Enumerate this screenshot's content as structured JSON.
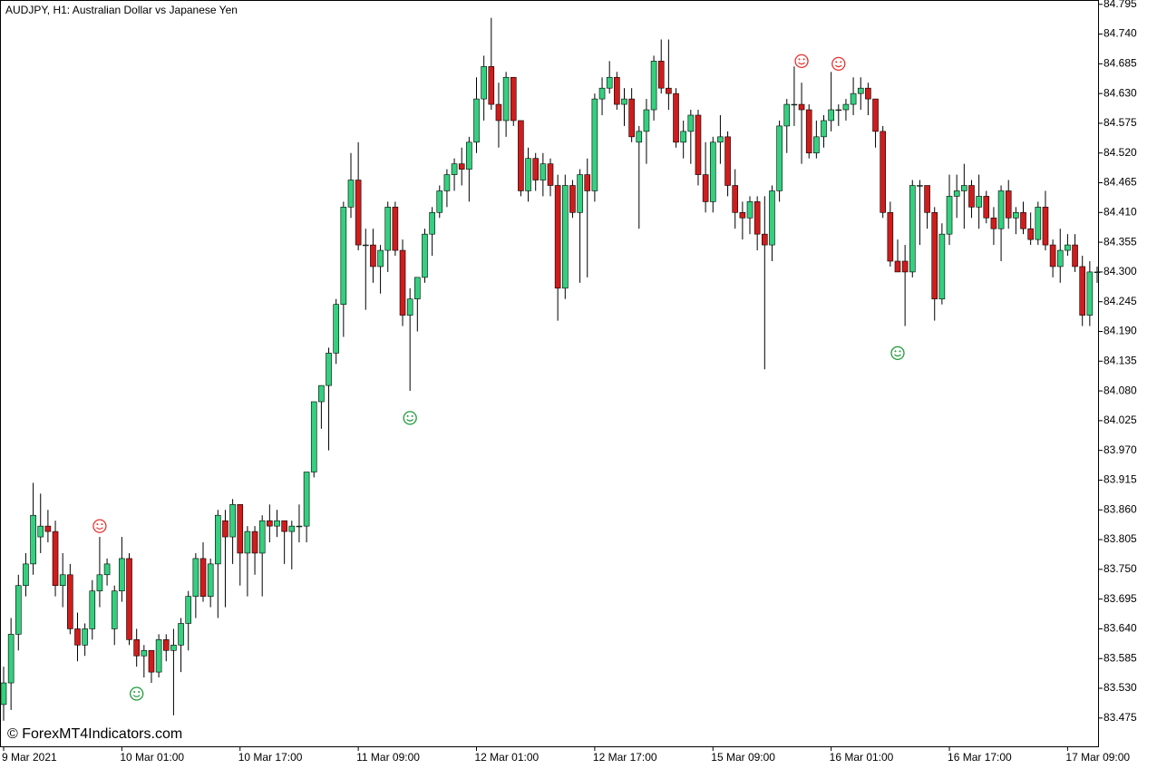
{
  "chart_data": {
    "type": "candlestick",
    "title": "AUDJPY, H1:  Australian Dollar vs Japanese Yen",
    "watermark": "© ForexMT4Indicators.com",
    "up_color": "#34d07f",
    "down_color": "#d01c1c",
    "wick_color": "#000000",
    "ylim": [
      83.421,
      84.803
    ],
    "yticks": [
      83.475,
      {
        "value": 83.53,
        "label": "83.530"
      },
      83.585,
      {
        "value": 83.64,
        "label": "83.640"
      },
      83.695,
      {
        "value": 83.75,
        "label": "83.750"
      },
      83.805,
      {
        "value": 83.86,
        "label": "83.860"
      },
      83.915,
      {
        "value": 83.97,
        "label": "83.970"
      },
      84.025,
      {
        "value": 84.08,
        "label": "84.080"
      },
      84.135,
      {
        "value": 84.19,
        "label": "84.190"
      },
      84.245,
      {
        "value": 84.3,
        "label": "84.300"
      },
      84.355,
      {
        "value": 84.41,
        "label": "84.410"
      },
      84.465,
      {
        "value": 84.52,
        "label": "84.520"
      },
      84.575,
      {
        "value": 84.63,
        "label": "84.630"
      },
      84.685,
      {
        "value": 84.74,
        "label": "84.740"
      },
      84.795
    ],
    "categories": [
      "9 Mar 2021",
      null,
      null,
      null,
      null,
      null,
      null,
      null,
      null,
      null,
      null,
      null,
      null,
      null,
      null,
      null,
      "10 Mar 01:00",
      null,
      null,
      null,
      null,
      null,
      null,
      null,
      null,
      null,
      null,
      null,
      null,
      null,
      null,
      null,
      "10 Mar 17:00",
      null,
      null,
      null,
      null,
      null,
      null,
      null,
      null,
      null,
      null,
      null,
      null,
      null,
      null,
      null,
      "11 Mar 09:00",
      null,
      null,
      null,
      null,
      null,
      null,
      null,
      null,
      null,
      null,
      null,
      null,
      null,
      null,
      null,
      "12 Mar 01:00",
      null,
      null,
      null,
      null,
      null,
      null,
      null,
      null,
      null,
      null,
      null,
      null,
      null,
      null,
      null,
      "12 Mar 17:00",
      null,
      null,
      null,
      null,
      null,
      null,
      null,
      null,
      null,
      null,
      null,
      null,
      null,
      null,
      null,
      "15 Mar 09:00",
      null,
      null,
      null,
      null,
      null,
      null,
      null,
      null,
      null,
      null,
      null,
      null,
      null,
      null,
      null,
      "16 Mar 01:00",
      null,
      null,
      null,
      null,
      null,
      null,
      null,
      null,
      null,
      null,
      null,
      null,
      null,
      null,
      null,
      "16 Mar 17:00",
      null,
      null,
      null,
      null,
      null,
      null,
      null,
      null,
      null,
      null,
      null,
      null,
      null,
      null,
      null,
      "17 Mar 09:00",
      null,
      null,
      null,
      null
    ],
    "ohlc": [
      [
        83.5,
        83.57,
        83.47,
        83.54
      ],
      [
        83.54,
        83.66,
        83.49,
        83.63
      ],
      [
        83.63,
        83.74,
        83.6,
        83.72
      ],
      [
        83.72,
        83.78,
        83.7,
        83.76
      ],
      [
        83.76,
        83.91,
        83.74,
        83.85
      ],
      [
        83.81,
        83.89,
        83.78,
        83.83
      ],
      [
        83.83,
        83.86,
        83.8,
        83.82
      ],
      [
        83.82,
        83.84,
        83.7,
        83.72
      ],
      [
        83.72,
        83.78,
        83.68,
        83.74
      ],
      [
        83.74,
        83.76,
        83.63,
        83.64
      ],
      [
        83.64,
        83.67,
        83.58,
        83.61
      ],
      [
        83.61,
        83.65,
        83.59,
        83.64
      ],
      [
        83.64,
        83.73,
        83.62,
        83.71
      ],
      [
        83.71,
        83.81,
        83.68,
        83.74
      ],
      [
        83.74,
        83.77,
        83.72,
        83.76
      ],
      [
        83.64,
        83.72,
        83.61,
        83.71
      ],
      [
        83.71,
        83.81,
        83.69,
        83.77
      ],
      [
        83.77,
        83.78,
        83.61,
        83.62
      ],
      [
        83.62,
        83.64,
        83.57,
        83.59
      ],
      [
        83.59,
        83.61,
        83.55,
        83.6
      ],
      [
        83.6,
        83.6,
        83.54,
        83.56
      ],
      [
        83.56,
        83.63,
        83.55,
        83.62
      ],
      [
        83.62,
        83.63,
        83.58,
        83.6
      ],
      [
        83.6,
        83.64,
        83.48,
        83.61
      ],
      [
        83.61,
        83.66,
        83.56,
        83.65
      ],
      [
        83.65,
        83.71,
        83.6,
        83.7
      ],
      [
        83.7,
        83.78,
        83.66,
        83.77
      ],
      [
        83.77,
        83.8,
        83.69,
        83.7
      ],
      [
        83.7,
        83.77,
        83.68,
        83.76
      ],
      [
        83.76,
        83.86,
        83.66,
        83.85
      ],
      [
        83.84,
        83.86,
        83.68,
        83.81
      ],
      [
        83.81,
        83.88,
        83.76,
        83.87
      ],
      [
        83.87,
        83.87,
        83.72,
        83.78
      ],
      [
        83.78,
        83.83,
        83.7,
        83.82
      ],
      [
        83.82,
        83.83,
        83.74,
        83.78
      ],
      [
        83.78,
        83.85,
        83.7,
        83.84
      ],
      [
        83.84,
        83.87,
        83.8,
        83.83
      ],
      [
        83.83,
        83.86,
        83.81,
        83.84
      ],
      [
        83.84,
        83.84,
        83.76,
        83.82
      ],
      [
        83.82,
        83.84,
        83.75,
        83.83
      ],
      [
        83.83,
        83.87,
        83.8,
        83.83
      ],
      [
        83.83,
        83.93,
        83.8,
        83.93
      ],
      [
        83.93,
        84.06,
        83.92,
        84.06
      ],
      [
        84.06,
        84.09,
        84.01,
        84.09
      ],
      [
        84.09,
        84.16,
        83.97,
        84.15
      ],
      [
        84.15,
        84.25,
        84.13,
        84.24
      ],
      [
        84.24,
        84.43,
        84.18,
        84.42
      ],
      [
        84.42,
        84.52,
        84.4,
        84.47
      ],
      [
        84.47,
        84.54,
        84.34,
        84.35
      ],
      [
        84.35,
        84.38,
        84.23,
        84.35
      ],
      [
        84.35,
        84.38,
        84.28,
        84.31
      ],
      [
        84.31,
        84.35,
        84.26,
        84.34
      ],
      [
        84.34,
        84.43,
        84.3,
        84.42
      ],
      [
        84.42,
        84.43,
        84.33,
        84.34
      ],
      [
        84.34,
        84.36,
        84.2,
        84.22
      ],
      [
        84.22,
        84.27,
        84.08,
        84.25
      ],
      [
        84.25,
        84.29,
        84.19,
        84.29
      ],
      [
        84.29,
        84.38,
        84.28,
        84.37
      ],
      [
        84.37,
        84.42,
        84.33,
        84.41
      ],
      [
        84.41,
        84.46,
        84.4,
        84.45
      ],
      [
        84.45,
        84.49,
        84.42,
        84.48
      ],
      [
        84.48,
        84.51,
        84.45,
        84.5
      ],
      [
        84.5,
        84.53,
        84.46,
        84.49
      ],
      [
        84.49,
        84.55,
        84.43,
        84.54
      ],
      [
        84.54,
        84.66,
        84.52,
        84.62
      ],
      [
        84.62,
        84.7,
        84.58,
        84.68
      ],
      [
        84.68,
        84.77,
        84.6,
        84.61
      ],
      [
        84.61,
        84.65,
        84.53,
        84.58
      ],
      [
        84.58,
        84.67,
        84.55,
        84.66
      ],
      [
        84.66,
        84.66,
        84.57,
        84.58
      ],
      [
        84.58,
        84.58,
        84.44,
        84.45
      ],
      [
        84.45,
        84.53,
        84.43,
        84.51
      ],
      [
        84.51,
        84.52,
        84.45,
        84.47
      ],
      [
        84.47,
        84.52,
        84.44,
        84.5
      ],
      [
        84.5,
        84.51,
        84.44,
        84.46
      ],
      [
        84.46,
        84.48,
        84.21,
        84.27
      ],
      [
        84.27,
        84.48,
        84.25,
        84.46
      ],
      [
        84.46,
        84.47,
        84.4,
        84.41
      ],
      [
        84.41,
        84.49,
        84.28,
        84.48
      ],
      [
        84.48,
        84.51,
        84.29,
        84.45
      ],
      [
        84.45,
        84.63,
        84.43,
        84.62
      ],
      [
        84.62,
        84.66,
        84.59,
        84.64
      ],
      [
        84.64,
        84.69,
        84.63,
        84.66
      ],
      [
        84.66,
        84.67,
        84.6,
        84.61
      ],
      [
        84.61,
        84.64,
        84.57,
        84.62
      ],
      [
        84.62,
        84.64,
        84.54,
        84.55
      ],
      [
        84.54,
        84.57,
        84.38,
        84.56
      ],
      [
        84.56,
        84.62,
        84.5,
        84.6
      ],
      [
        84.6,
        84.7,
        84.58,
        84.69
      ],
      [
        84.69,
        84.73,
        84.63,
        84.64
      ],
      [
        84.64,
        84.73,
        84.6,
        84.63
      ],
      [
        84.63,
        84.64,
        84.53,
        84.54
      ],
      [
        84.54,
        84.58,
        84.51,
        84.56
      ],
      [
        84.56,
        84.6,
        84.5,
        84.59
      ],
      [
        84.59,
        84.6,
        84.46,
        84.48
      ],
      [
        84.48,
        84.54,
        84.41,
        84.43
      ],
      [
        84.43,
        84.55,
        84.41,
        84.54
      ],
      [
        84.54,
        84.59,
        84.5,
        84.55
      ],
      [
        84.55,
        84.56,
        84.44,
        84.46
      ],
      [
        84.46,
        84.49,
        84.38,
        84.41
      ],
      [
        84.41,
        84.43,
        84.36,
        84.4
      ],
      [
        84.4,
        84.44,
        84.37,
        84.43
      ],
      [
        84.43,
        84.44,
        84.34,
        84.37
      ],
      [
        84.37,
        84.44,
        84.12,
        84.35
      ],
      [
        84.35,
        84.46,
        84.32,
        84.45
      ],
      [
        84.45,
        84.58,
        84.43,
        84.57
      ],
      [
        84.57,
        84.62,
        84.52,
        84.61
      ],
      [
        84.61,
        84.68,
        84.57,
        84.61
      ],
      [
        84.61,
        84.65,
        84.5,
        84.6
      ],
      [
        84.6,
        84.61,
        84.51,
        84.52
      ],
      [
        84.52,
        84.58,
        84.51,
        84.55
      ],
      [
        84.55,
        84.59,
        84.53,
        84.58
      ],
      [
        84.58,
        84.67,
        84.56,
        84.6
      ],
      [
        84.6,
        84.61,
        84.57,
        84.6
      ],
      [
        84.6,
        84.62,
        84.58,
        84.61
      ],
      [
        84.61,
        84.66,
        84.59,
        84.63
      ],
      [
        84.63,
        84.66,
        84.6,
        84.64
      ],
      [
        84.64,
        84.65,
        84.59,
        84.62
      ],
      [
        84.62,
        84.62,
        84.53,
        84.56
      ],
      [
        84.56,
        84.57,
        84.4,
        84.41
      ],
      [
        84.41,
        84.43,
        84.31,
        84.32
      ],
      [
        84.32,
        84.36,
        84.3,
        84.3
      ],
      [
        84.32,
        84.35,
        84.2,
        84.3
      ],
      [
        84.3,
        84.47,
        84.29,
        84.46
      ],
      [
        84.46,
        84.47,
        84.35,
        84.46
      ],
      [
        84.46,
        84.46,
        84.38,
        84.41
      ],
      [
        84.41,
        84.42,
        84.21,
        84.25
      ],
      [
        84.25,
        84.39,
        84.24,
        84.37
      ],
      [
        84.37,
        84.48,
        84.35,
        84.44
      ],
      [
        84.44,
        84.48,
        84.4,
        84.45
      ],
      [
        84.45,
        84.5,
        84.38,
        84.46
      ],
      [
        84.46,
        84.47,
        84.4,
        84.42
      ],
      [
        84.42,
        84.48,
        84.38,
        84.44
      ],
      [
        84.44,
        84.45,
        84.39,
        84.4
      ],
      [
        84.4,
        84.42,
        84.35,
        84.38
      ],
      [
        84.38,
        84.46,
        84.32,
        84.45
      ],
      [
        84.45,
        84.47,
        84.38,
        84.4
      ],
      [
        84.4,
        84.42,
        84.37,
        84.41
      ],
      [
        84.41,
        84.43,
        84.37,
        84.38
      ],
      [
        84.38,
        84.41,
        84.35,
        84.36
      ],
      [
        84.36,
        84.43,
        84.35,
        84.42
      ],
      [
        84.42,
        84.45,
        84.34,
        84.35
      ],
      [
        84.35,
        84.36,
        84.29,
        84.31
      ],
      [
        84.31,
        84.38,
        84.28,
        84.34
      ],
      [
        84.34,
        84.37,
        84.33,
        84.35
      ],
      [
        84.35,
        84.37,
        84.3,
        84.31
      ],
      [
        84.31,
        84.33,
        84.2,
        84.22
      ],
      [
        84.22,
        84.32,
        84.2,
        84.3
      ],
      [
        84.3,
        84.31,
        84.28,
        84.3
      ]
    ],
    "signals": {
      "sell_color": "#e8322f",
      "buy_color": "#1f9a3a",
      "sell": [
        {
          "index": 13,
          "price": 83.83
        },
        {
          "index": 108,
          "price": 84.69
        },
        {
          "index": 113,
          "price": 84.685
        }
      ],
      "buy": [
        {
          "index": 18,
          "price": 83.52
        },
        {
          "index": 55,
          "price": 84.03
        },
        {
          "index": 121,
          "price": 84.15
        }
      ]
    }
  }
}
